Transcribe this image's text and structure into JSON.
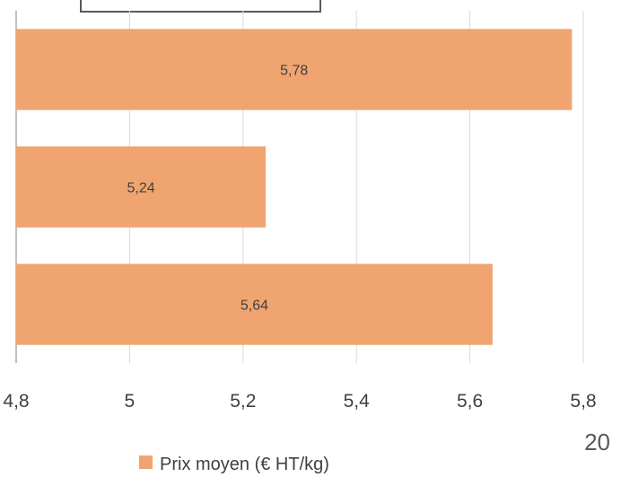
{
  "chart_data": {
    "type": "bar",
    "orientation": "horizontal",
    "categories": [
      "",
      "",
      ""
    ],
    "series": [
      {
        "name": "Prix moyen (€ HT/kg)",
        "values": [
          5.78,
          5.24,
          5.64
        ],
        "value_labels": [
          "5,78",
          "5,24",
          "5,64"
        ],
        "color": "#F0A46F"
      }
    ],
    "xlim": [
      4.8,
      5.8
    ],
    "x_ticks": [
      4.8,
      5.0,
      5.2,
      5.4,
      5.6,
      5.8
    ],
    "x_tick_labels": [
      "4,8",
      "5",
      "5,2",
      "5,4",
      "5,6",
      "5,8"
    ],
    "grid": true,
    "legend_position": "bottom",
    "legend_text": "Prix moyen (€ HT/kg)"
  },
  "page_number": "20",
  "colors": {
    "bar": "#F0A46F",
    "grid": "#D9D9D9",
    "axis": "#808080",
    "text": "#404040"
  }
}
